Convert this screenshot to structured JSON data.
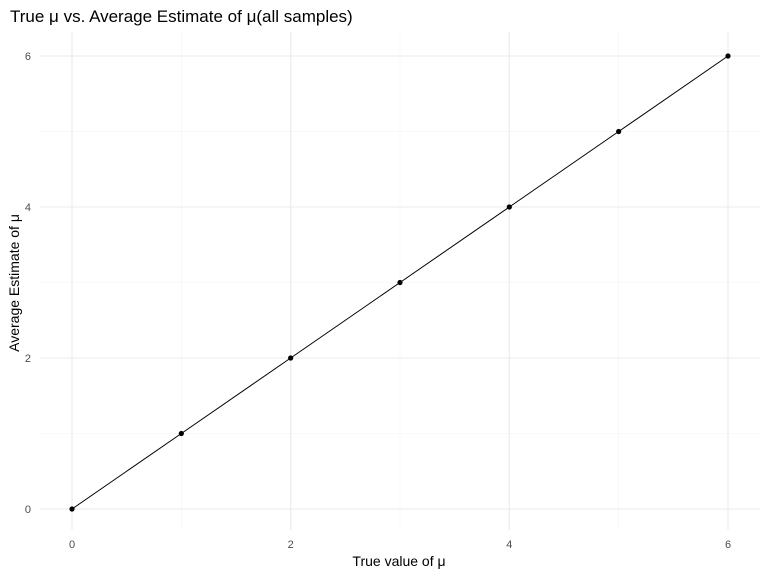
{
  "chart_data": {
    "type": "line",
    "title": "True μ vs. Average Estimate of μ(all samples)",
    "xlabel": "True value of μ",
    "ylabel": "Average Estimate of μ",
    "x": [
      0,
      1,
      2,
      3,
      4,
      5,
      6
    ],
    "series": [
      {
        "values": [
          0,
          1,
          2,
          3,
          4,
          5,
          6
        ],
        "color": "#000000",
        "markers": true
      }
    ],
    "xlim": [
      0,
      6
    ],
    "ylim": [
      0,
      6
    ],
    "x_ticks": [
      0,
      2,
      4,
      6
    ],
    "y_ticks": [
      0,
      2,
      4,
      6
    ],
    "x_tick_labels": [
      "0",
      "2",
      "4",
      "6"
    ],
    "y_tick_labels": [
      "0",
      "2",
      "4",
      "6"
    ],
    "grid": true,
    "legend": "none"
  }
}
